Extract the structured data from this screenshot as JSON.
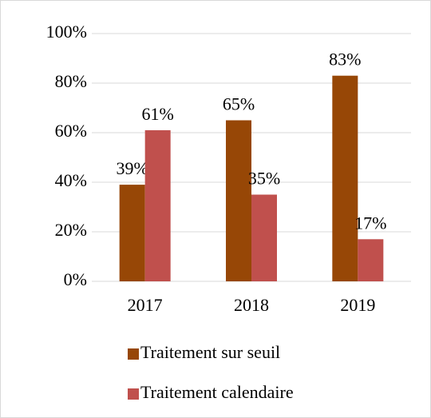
{
  "chart_data": {
    "type": "bar",
    "categories": [
      "2017",
      "2018",
      "2019"
    ],
    "series": [
      {
        "name": "Traitement sur seuil",
        "color": "#974706",
        "values": [
          39,
          65,
          83
        ],
        "value_labels": [
          "39%",
          "65%",
          "83%"
        ]
      },
      {
        "name": "Traitement calendaire",
        "color": "#c0504d",
        "values": [
          61,
          35,
          17
        ],
        "value_labels": [
          "61%",
          "35%",
          "17%"
        ]
      }
    ],
    "ylim": [
      0,
      100
    ],
    "yticks": [
      {
        "value": 0,
        "label": "0%"
      },
      {
        "value": 20,
        "label": "20%"
      },
      {
        "value": 40,
        "label": "40%"
      },
      {
        "value": 60,
        "label": "60%"
      },
      {
        "value": 80,
        "label": "80%"
      },
      {
        "value": 100,
        "label": "100%"
      }
    ],
    "grid": true,
    "legend": "bottom"
  }
}
